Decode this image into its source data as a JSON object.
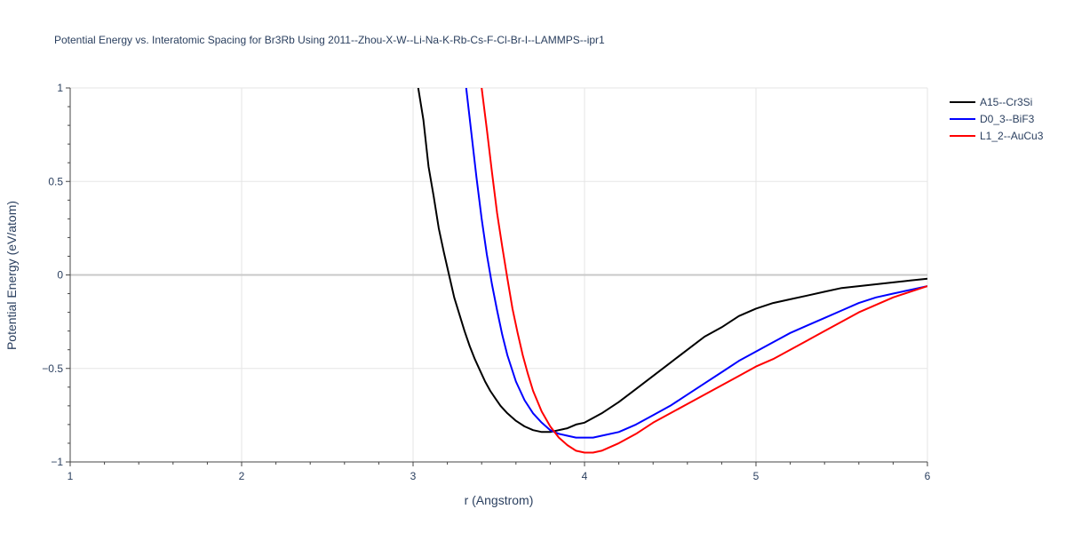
{
  "chart_data": {
    "type": "line",
    "title": "Potential Energy vs. Interatomic Spacing for Br3Rb Using 2011--Zhou-X-W--Li-Na-K-Rb-Cs-F-Cl-Br-I--LAMMPS--ipr1",
    "xlabel": "r (Angstrom)",
    "ylabel": "Potential Energy (eV/atom)",
    "xlim": [
      1,
      6
    ],
    "ylim": [
      -1,
      1
    ],
    "x_ticks": [
      1,
      2,
      3,
      4,
      5,
      6
    ],
    "x_tick_labels": [
      "1",
      "2",
      "3",
      "4",
      "5",
      "6"
    ],
    "y_ticks": [
      -1,
      -0.5,
      0,
      0.5,
      1
    ],
    "y_tick_labels": [
      "−1",
      "−0.5",
      "0",
      "0.5",
      "1"
    ],
    "grid": true,
    "legend_position": "top-right",
    "series": [
      {
        "name": "A15--Cr3Si",
        "color": "#000000",
        "x": [
          3.03,
          3.06,
          3.09,
          3.12,
          3.15,
          3.18,
          3.21,
          3.24,
          3.27,
          3.3,
          3.33,
          3.36,
          3.39,
          3.42,
          3.45,
          3.48,
          3.51,
          3.55,
          3.6,
          3.65,
          3.7,
          3.75,
          3.8,
          3.85,
          3.9,
          3.95,
          4.0,
          4.1,
          4.2,
          4.3,
          4.4,
          4.5,
          4.6,
          4.7,
          4.8,
          4.9,
          5.0,
          5.1,
          5.2,
          5.3,
          5.4,
          5.5,
          5.6,
          5.7,
          5.8,
          5.9,
          6.0
        ],
        "y": [
          1.0,
          0.83,
          0.58,
          0.42,
          0.25,
          0.12,
          0.0,
          -0.12,
          -0.21,
          -0.3,
          -0.38,
          -0.45,
          -0.51,
          -0.57,
          -0.62,
          -0.66,
          -0.7,
          -0.74,
          -0.78,
          -0.81,
          -0.83,
          -0.84,
          -0.84,
          -0.83,
          -0.82,
          -0.8,
          -0.79,
          -0.74,
          -0.68,
          -0.61,
          -0.54,
          -0.47,
          -0.4,
          -0.33,
          -0.28,
          -0.22,
          -0.18,
          -0.15,
          -0.13,
          -0.11,
          -0.09,
          -0.07,
          -0.06,
          -0.05,
          -0.04,
          -0.03,
          -0.02
        ]
      },
      {
        "name": "D0_3--BiF3",
        "color": "#0000ff",
        "x": [
          3.31,
          3.34,
          3.37,
          3.4,
          3.43,
          3.46,
          3.49,
          3.52,
          3.55,
          3.6,
          3.65,
          3.7,
          3.75,
          3.8,
          3.85,
          3.9,
          3.95,
          4.0,
          4.05,
          4.1,
          4.2,
          4.3,
          4.4,
          4.5,
          4.6,
          4.7,
          4.8,
          4.9,
          5.0,
          5.1,
          5.2,
          5.3,
          5.4,
          5.5,
          5.6,
          5.7,
          5.8,
          5.9,
          6.0
        ],
        "y": [
          1.0,
          0.76,
          0.52,
          0.3,
          0.11,
          -0.05,
          -0.19,
          -0.32,
          -0.43,
          -0.57,
          -0.67,
          -0.74,
          -0.79,
          -0.83,
          -0.85,
          -0.86,
          -0.87,
          -0.87,
          -0.87,
          -0.86,
          -0.84,
          -0.8,
          -0.75,
          -0.7,
          -0.64,
          -0.58,
          -0.52,
          -0.46,
          -0.41,
          -0.36,
          -0.31,
          -0.27,
          -0.23,
          -0.19,
          -0.15,
          -0.12,
          -0.1,
          -0.08,
          -0.06
        ]
      },
      {
        "name": "L1_2--AuCu3",
        "color": "#ff0000",
        "x": [
          3.4,
          3.43,
          3.46,
          3.49,
          3.52,
          3.55,
          3.58,
          3.61,
          3.64,
          3.67,
          3.7,
          3.75,
          3.8,
          3.85,
          3.9,
          3.95,
          4.0,
          4.05,
          4.1,
          4.2,
          4.3,
          4.4,
          4.5,
          4.6,
          4.7,
          4.8,
          4.9,
          5.0,
          5.1,
          5.2,
          5.3,
          5.4,
          5.5,
          5.6,
          5.7,
          5.8,
          5.9,
          6.0
        ],
        "y": [
          1.0,
          0.78,
          0.55,
          0.33,
          0.15,
          -0.02,
          -0.18,
          -0.31,
          -0.43,
          -0.53,
          -0.62,
          -0.73,
          -0.81,
          -0.87,
          -0.91,
          -0.94,
          -0.95,
          -0.95,
          -0.94,
          -0.9,
          -0.85,
          -0.79,
          -0.74,
          -0.69,
          -0.64,
          -0.59,
          -0.54,
          -0.49,
          -0.45,
          -0.4,
          -0.35,
          -0.3,
          -0.25,
          -0.2,
          -0.16,
          -0.12,
          -0.09,
          -0.06
        ]
      }
    ]
  }
}
